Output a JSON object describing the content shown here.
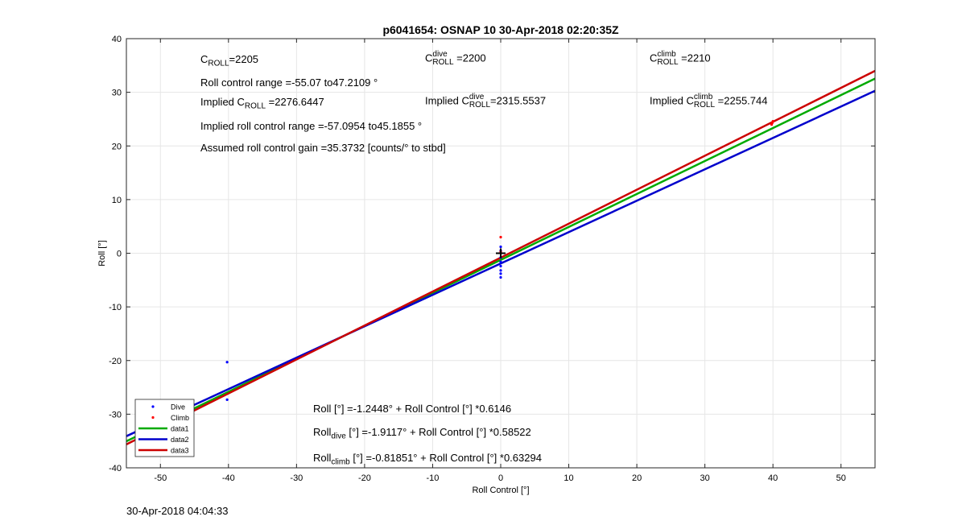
{
  "chart_data": {
    "type": "scatter",
    "title": "p6041654: OSNAP 10 30-Apr-2018 02:20:35Z",
    "xlabel": "Roll Control [°]",
    "ylabel": "Roll [°]",
    "xlim": [
      -55,
      55
    ],
    "ylim": [
      -40,
      40
    ],
    "xticks": [
      -50,
      -40,
      -30,
      -20,
      -10,
      0,
      10,
      20,
      30,
      40,
      50
    ],
    "yticks": [
      -40,
      -30,
      -20,
      -10,
      0,
      10,
      20,
      30,
      40
    ],
    "grid": true,
    "legend_position": "bottom-left",
    "colors": {
      "dive": "#0000ff",
      "climb": "#ff0000",
      "data1": "#00aa00",
      "data2": "#0000cc",
      "data3": "#cc0000"
    },
    "series": [
      {
        "name": "Dive",
        "kind": "points",
        "color": "#0000ff",
        "x": [
          -40.2,
          -40.2,
          0,
          0,
          0,
          0,
          0,
          0,
          0,
          0
        ],
        "y": [
          -20.3,
          -27.3,
          -4.5,
          -3.8,
          -3.2,
          -2.4,
          -1.6,
          -0.8,
          0.5,
          1.2
        ]
      },
      {
        "name": "Climb",
        "kind": "points",
        "color": "#ff0000",
        "x": [
          0,
          0,
          39.8,
          40,
          39.9
        ],
        "y": [
          3.0,
          0.3,
          24.0,
          24.6,
          24.3
        ]
      },
      {
        "name": "data1",
        "kind": "line",
        "color": "#00aa00",
        "slope": 0.6146,
        "intercept": -1.2448
      },
      {
        "name": "data2",
        "kind": "line",
        "color": "#0000cc",
        "slope": 0.58522,
        "intercept": -1.9117
      },
      {
        "name": "data3",
        "kind": "line",
        "color": "#cc0000",
        "slope": 0.63294,
        "intercept": -0.81851
      }
    ],
    "center_marker": {
      "x": 0,
      "y": 0,
      "symbol": "+"
    }
  },
  "annotations": {
    "c_roll": {
      "base": "C",
      "sub": "ROLL",
      "value": "=2205"
    },
    "c_roll_dive": {
      "base": "C",
      "sup": "dive",
      "sub": "ROLL",
      "value": " =2200"
    },
    "c_roll_climb": {
      "base": "C",
      "sup": "climb",
      "sub": "ROLL",
      "value": " =2210"
    },
    "roll_range": "Roll control range =-55.07 to47.2109 °",
    "implied_c_roll": {
      "prefix": "Implied C",
      "sub": "ROLL",
      "value": " =2276.6447"
    },
    "implied_c_roll_dive": {
      "prefix": "Implied C",
      "sup": "dive",
      "sub": "ROLL",
      "value": "=2315.5537"
    },
    "implied_c_roll_climb": {
      "prefix": "Implied C",
      "sup": "climb",
      "sub": "ROLL",
      "value": " =2255.744"
    },
    "implied_range": "Implied roll control range =-57.0954 to45.1855 °",
    "assumed_gain": "Assumed roll control gain =35.3732 [counts/° to stbd]",
    "eq_all": "Roll [°] =-1.2448° + Roll Control [°] *0.6146",
    "eq_dive": {
      "prefix": "Roll",
      "sub": "dive",
      "rest": " [°] =-1.9117° + Roll Control [°] *0.58522"
    },
    "eq_climb": {
      "prefix": "Roll",
      "sub": "climb",
      "rest": " [°] =-0.81851° + Roll Control [°] *0.63294"
    }
  },
  "footer": {
    "timestamp": "30-Apr-2018 04:04:33"
  }
}
